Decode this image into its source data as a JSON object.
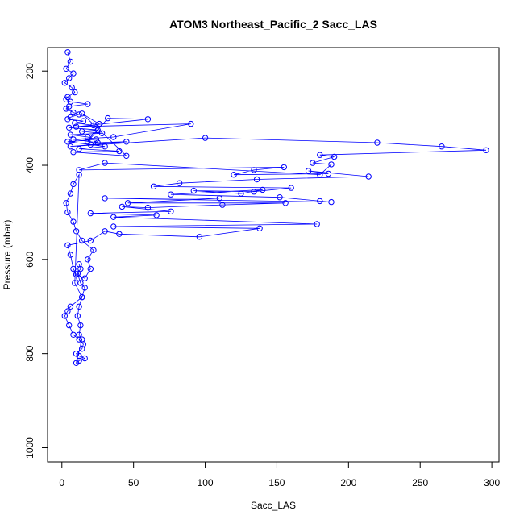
{
  "chart_data": {
    "type": "scatter",
    "title": "ATOM3 Northeast_Pacific_2 Sacc_LAS",
    "xlabel": "Sacc_LAS",
    "ylabel": "Pressure (mbar)",
    "xlim": [
      -10,
      305
    ],
    "ylim": [
      1030,
      150
    ],
    "y_reversed": true,
    "x_ticks": [
      0,
      50,
      100,
      150,
      200,
      250,
      300
    ],
    "y_ticks": [
      200,
      400,
      600,
      800,
      1000
    ],
    "x_tick_labels": [
      "0",
      "50",
      "100",
      "150",
      "200",
      "250",
      "300"
    ],
    "y_tick_labels": [
      "200",
      "400",
      "600",
      "800",
      "1000"
    ],
    "grid": false,
    "legend": "none",
    "marker": "open-circle",
    "connected": true,
    "color": "#0000ff",
    "series": [
      {
        "x": [
          4,
          6,
          3,
          8,
          5,
          2,
          7,
          9,
          4,
          3,
          6,
          18,
          5,
          3,
          8,
          12,
          6,
          4,
          15,
          9,
          22,
          5,
          25,
          14,
          28,
          6,
          18,
          24,
          4,
          20,
          30,
          12,
          40,
          8,
          45,
          14,
          26,
          18,
          32,
          60,
          10,
          90,
          36,
          8,
          25,
          45,
          6,
          100,
          220,
          265,
          296,
          180,
          190,
          175,
          188,
          180,
          30,
          12,
          155,
          134,
          120,
          186,
          172,
          214,
          136,
          82,
          64,
          160,
          134,
          92,
          125,
          140,
          76,
          152,
          180,
          188,
          30,
          110,
          46,
          156,
          112,
          60,
          42,
          76,
          20,
          66,
          36,
          178,
          36,
          138,
          96,
          40,
          30,
          20,
          4,
          6,
          8,
          10,
          16,
          20,
          18,
          22,
          14,
          10,
          8,
          4,
          3,
          6,
          8,
          12,
          9,
          14,
          6,
          4,
          2,
          5,
          8,
          12,
          15,
          14,
          10,
          12,
          16,
          12,
          10,
          14,
          12,
          13,
          11,
          12,
          14,
          16,
          13,
          12,
          11,
          13,
          12
        ],
        "y": [
          160,
          180,
          195,
          205,
          215,
          225,
          235,
          245,
          255,
          260,
          265,
          270,
          275,
          280,
          288,
          292,
          298,
          302,
          306,
          310,
          315,
          320,
          325,
          328,
          332,
          335,
          340,
          345,
          350,
          356,
          360,
          365,
          370,
          372,
          380,
          290,
          312,
          350,
          300,
          302,
          318,
          312,
          340,
          345,
          352,
          350,
          360,
          342,
          352,
          360,
          368,
          378,
          382,
          395,
          398,
          420,
          395,
          410,
          404,
          410,
          420,
          418,
          412,
          424,
          430,
          438,
          445,
          448,
          456,
          454,
          460,
          452,
          462,
          468,
          476,
          478,
          470,
          470,
          480,
          480,
          484,
          490,
          488,
          498,
          502,
          506,
          510,
          525,
          530,
          534,
          552,
          546,
          540,
          560,
          570,
          590,
          620,
          632,
          640,
          620,
          600,
          580,
          560,
          540,
          520,
          500,
          480,
          460,
          440,
          420,
          650,
          680,
          700,
          710,
          720,
          740,
          760,
          770,
          780,
          790,
          800,
          805,
          810,
          815,
          820,
          770,
          760,
          740,
          720,
          700,
          680,
          660,
          650,
          640,
          630,
          620,
          610
        ]
      }
    ]
  }
}
